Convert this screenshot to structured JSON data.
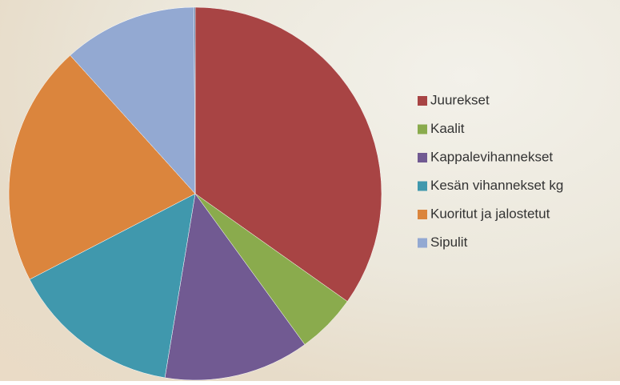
{
  "chart_data": {
    "type": "pie",
    "categories": [
      "Juurekset",
      "Kaalit",
      "Kappalevihannekset",
      "Kesän vihannekset kg",
      "Kuoritut ja jalostetut",
      "Sipulit",
      null
    ],
    "values": [
      34.8,
      5.2,
      12.6,
      14.8,
      20.9,
      11.6,
      0.1
    ],
    "colors": [
      "#a84444",
      "#8aab4d",
      "#715a92",
      "#4098ad",
      "#db853d",
      "#93a9d2",
      "#3a5f8f"
    ],
    "legend": "right"
  }
}
